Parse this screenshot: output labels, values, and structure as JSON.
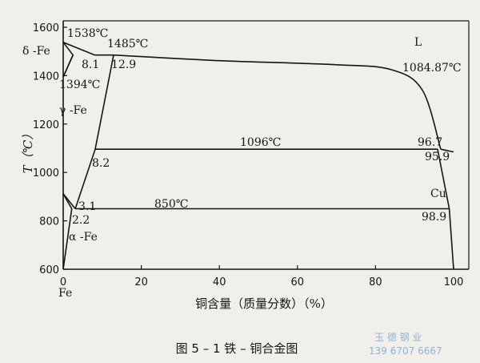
{
  "chart_data": {
    "type": "phase-diagram",
    "xlabel": "铜含量（质量分数）（%）",
    "ylabel": "T（℃）",
    "xlim": [
      0,
      100
    ],
    "ylim": [
      600,
      1600
    ],
    "x_ticks": [
      "0",
      "20",
      "40",
      "60",
      "80",
      "100"
    ],
    "y_ticks": [
      "600",
      "800",
      "1000",
      "1200",
      "1400",
      "1600"
    ],
    "axis_end_labels": {
      "left": "Fe",
      "right": "Cu"
    },
    "regions": {
      "liquid": "L",
      "delta": "δ -Fe",
      "gamma": "γ -Fe",
      "alpha": "α -Fe"
    },
    "annotations": {
      "t1538": "1538℃",
      "t1485": "1485℃",
      "t1394": "1394℃",
      "c81": "8.1",
      "c129": "12.9",
      "t108487": "1084.87℃",
      "t1096": "1096℃",
      "c967": "96.7",
      "c959": "95.9",
      "c82": "8.2",
      "t850": "850℃",
      "c31": "3.1",
      "c22": "2.2",
      "c989": "98.9"
    },
    "isotherms": [
      {
        "T": 1485,
        "x": [
          8.1,
          12.9
        ]
      },
      {
        "T": 1096,
        "x": [
          8.2,
          95.9
        ]
      },
      {
        "T": 850,
        "x": [
          3.1,
          98.9
        ]
      }
    ],
    "curves": {
      "liquidus_fe": [
        [
          0,
          1538
        ],
        [
          8.1,
          1485
        ]
      ],
      "liquidus_main": [
        [
          12.9,
          1485
        ],
        [
          40,
          1462
        ],
        [
          70,
          1445
        ],
        [
          84,
          1425
        ],
        [
          92,
          1340
        ],
        [
          96.7,
          1096
        ]
      ],
      "liquidus_cu": [
        [
          96.7,
          1096
        ],
        [
          100,
          1084.87
        ]
      ],
      "delta_solvus": [
        [
          0,
          1538
        ],
        [
          2.5,
          1485
        ],
        [
          0,
          1394
        ]
      ],
      "gamma_left": [
        [
          0,
          1394
        ],
        [
          2.5,
          1485
        ]
      ],
      "gamma_right": [
        [
          12.9,
          1485
        ],
        [
          8.2,
          1096
        ],
        [
          3.1,
          850
        ]
      ],
      "gamma_lower": [
        [
          0,
          912
        ],
        [
          3.1,
          850
        ]
      ],
      "alpha_solvus": [
        [
          0,
          912
        ],
        [
          2.2,
          850
        ],
        [
          0,
          600
        ]
      ],
      "cu_solvus": [
        [
          95.9,
          1096
        ],
        [
          98.9,
          850
        ],
        [
          100,
          600
        ]
      ]
    }
  },
  "caption": "图 5 – 1    铁 – 铜合金图",
  "watermark": {
    "line1": "玉 德  钢 业",
    "line2": "139 6707 6667"
  }
}
